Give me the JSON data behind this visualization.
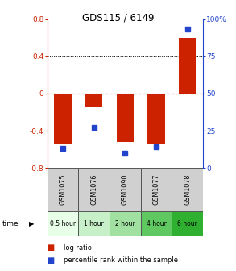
{
  "title": "GDS115 / 6149",
  "samples": [
    "GSM1075",
    "GSM1076",
    "GSM1090",
    "GSM1077",
    "GSM1078"
  ],
  "time_labels": [
    "0.5 hour",
    "1 hour",
    "2 hour",
    "4 hour",
    "6 hour"
  ],
  "time_colors": [
    "#e8ffe8",
    "#c8f0c8",
    "#a0e0a0",
    "#60c860",
    "#30b030"
  ],
  "log_ratios": [
    -0.54,
    -0.15,
    -0.52,
    -0.55,
    0.6
  ],
  "percentile_ranks": [
    13,
    27,
    10,
    14,
    93
  ],
  "bar_color_red": "#cc2200",
  "bar_color_blue": "#2244cc",
  "ylim_left": [
    -0.8,
    0.8
  ],
  "ylim_right": [
    0,
    100
  ],
  "yticks_left": [
    -0.8,
    -0.4,
    0.0,
    0.4,
    0.8
  ],
  "yticks_right": [
    0,
    25,
    50,
    75,
    100
  ],
  "bar_width": 0.55,
  "gsm_bg_color": "#d0d0d0",
  "gsm_border_color": "#555555"
}
